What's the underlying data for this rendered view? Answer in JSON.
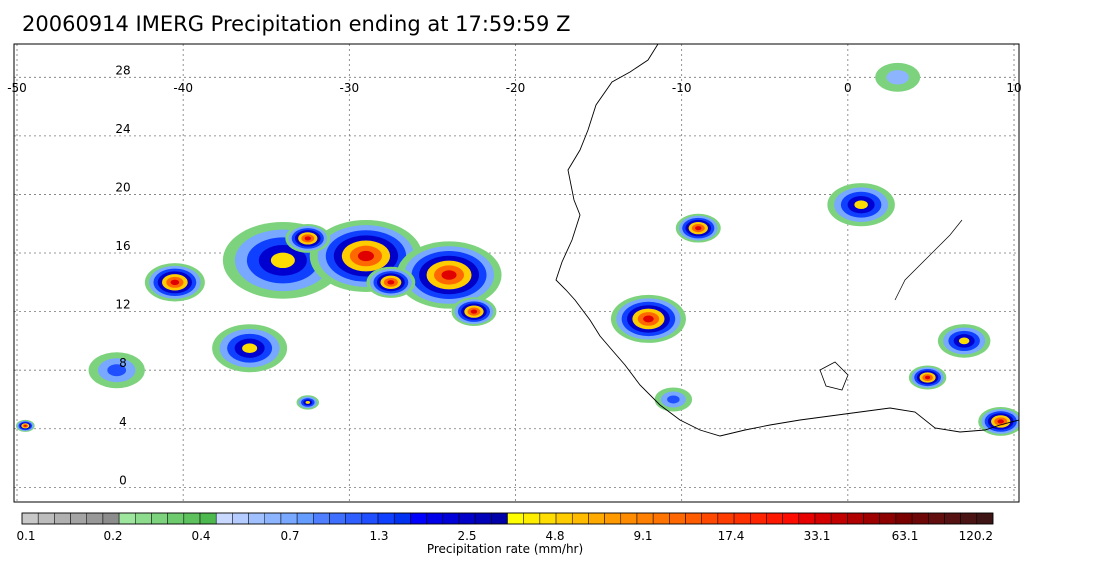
{
  "title": "20060914 IMERG Precipitation ending at 17:59:59 Z",
  "map": {
    "lon_range": [
      -50,
      10
    ],
    "lat_range": [
      -1,
      30
    ],
    "lon_ticks": [
      "-50",
      "-40",
      "-30",
      "-20",
      "-10",
      "0",
      "10"
    ],
    "lat_ticks": [
      "28",
      "24",
      "20",
      "16",
      "12",
      "8",
      "4",
      "0"
    ],
    "gridlines": "dotted",
    "coastline_color": "#000000"
  },
  "colorbar": {
    "label": "Precipitation rate (mm/hr)",
    "tick_labels": [
      "0.1",
      "0.2",
      "0.4",
      "0.7",
      "1.3",
      "2.5",
      "4.8",
      "9.1",
      "17.4",
      "33.1",
      "63.1",
      "120.2"
    ],
    "colors": [
      "#c8c8c8",
      "#bcbcbc",
      "#b0b0b0",
      "#a4a4a4",
      "#989898",
      "#8c8c8c",
      "#9ee59e",
      "#8ddc8d",
      "#7dd37d",
      "#6dca6d",
      "#5dc15d",
      "#4db84d",
      "#c8d8ff",
      "#b4ccff",
      "#a0c0ff",
      "#8cb4ff",
      "#78a8ff",
      "#649cff",
      "#4f7fff",
      "#3f6fff",
      "#2f5fff",
      "#1f4fff",
      "#0f3fff",
      "#0030f0",
      "#0000ff",
      "#0000e8",
      "#0000d8",
      "#0000c8",
      "#0000b8",
      "#0000a8",
      "#ffff00",
      "#ffee00",
      "#ffdd00",
      "#ffcc00",
      "#ffbb00",
      "#ffaa00",
      "#ff9900",
      "#ff8c00",
      "#ff8000",
      "#ff7400",
      "#ff6800",
      "#ff5c00",
      "#ff4800",
      "#ff3c00",
      "#ff3000",
      "#ff2400",
      "#ff1800",
      "#ff0c00",
      "#e60000",
      "#d40000",
      "#c20000",
      "#b00000",
      "#9e0000",
      "#8c0000",
      "#7a0000",
      "#6e0808",
      "#620e0e",
      "#561212",
      "#4a1414",
      "#3e1414"
    ]
  },
  "precip_cells": [
    {
      "lon": -34,
      "lat": 15.5,
      "r": 3.2,
      "intensity": 2
    },
    {
      "lon": -29,
      "lat": 15.8,
      "r": 3.0,
      "intensity": 3
    },
    {
      "lon": -24,
      "lat": 14.5,
      "r": 2.8,
      "intensity": 3
    },
    {
      "lon": -40.5,
      "lat": 14.0,
      "r": 1.6,
      "intensity": 3
    },
    {
      "lon": -32.5,
      "lat": 17.0,
      "r": 1.2,
      "intensity": 3
    },
    {
      "lon": -27.5,
      "lat": 14.0,
      "r": 1.3,
      "intensity": 3
    },
    {
      "lon": -22.5,
      "lat": 12.0,
      "r": 1.2,
      "intensity": 3
    },
    {
      "lon": -36,
      "lat": 9.5,
      "r": 2.0,
      "intensity": 2
    },
    {
      "lon": -44,
      "lat": 8.0,
      "r": 1.5,
      "intensity": 1
    },
    {
      "lon": -32.5,
      "lat": 5.8,
      "r": 0.6,
      "intensity": 2
    },
    {
      "lon": -9.0,
      "lat": 17.7,
      "r": 1.2,
      "intensity": 3
    },
    {
      "lon": -12.0,
      "lat": 11.5,
      "r": 2.0,
      "intensity": 3
    },
    {
      "lon": 0.8,
      "lat": 19.3,
      "r": 1.8,
      "intensity": 2
    },
    {
      "lon": 7.0,
      "lat": 10.0,
      "r": 1.4,
      "intensity": 2
    },
    {
      "lon": 4.8,
      "lat": 7.5,
      "r": 1.0,
      "intensity": 3
    },
    {
      "lon": 9.2,
      "lat": 4.5,
      "r": 1.2,
      "intensity": 3
    },
    {
      "lon": 3.0,
      "lat": 28.0,
      "r": 1.2,
      "intensity": 0
    },
    {
      "lon": -10.5,
      "lat": 6.0,
      "r": 1.0,
      "intensity": 1
    },
    {
      "lon": -49.5,
      "lat": 4.2,
      "r": 0.5,
      "intensity": 3
    }
  ]
}
